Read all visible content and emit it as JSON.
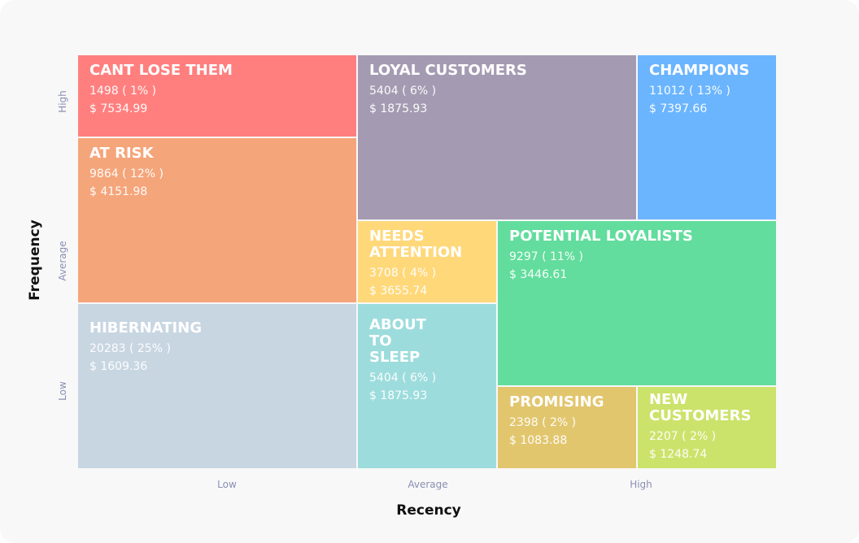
{
  "axes": {
    "y_title": "Frequency",
    "y_levels": [
      "High",
      "Average",
      "Low"
    ],
    "x_title": "Recency",
    "x_levels": [
      "Low",
      "Average",
      "High"
    ]
  },
  "segments": [
    {
      "name": "CANT LOSE THEM",
      "count": "1498 ( 1% )",
      "amount": "$ 7534.99"
    },
    {
      "name": "AT RISK",
      "count": "9864 ( 12% )",
      "amount": "$ 4151.98"
    },
    {
      "name": "HIBERNATING",
      "count": "20283 ( 25% )",
      "amount": "$ 1609.36"
    },
    {
      "name": "LOYAL CUSTOMERS",
      "count": "5404 ( 6% )",
      "amount": "$ 1875.93"
    },
    {
      "name": "CHAMPIONS",
      "count": "11012 ( 13% )",
      "amount": "$ 7397.66"
    },
    {
      "name": "NEEDS ATTENTION",
      "count": "3708 ( 4% )",
      "amount": "$ 3655.74"
    },
    {
      "name": "ABOUT TO SLEEP",
      "count": "5404 ( 6% )",
      "amount": "$ 1875.93"
    },
    {
      "name": "POTENTIAL LOYALISTS",
      "count": "9297 ( 11% )",
      "amount": "$ 3446.61"
    },
    {
      "name": "PROMISING",
      "count": "2398 ( 2% )",
      "amount": "$ 1083.88"
    },
    {
      "name": "NEW CUSTOMERS",
      "count": "2207 ( 2% )",
      "amount": "$ 1248.74"
    }
  ]
}
